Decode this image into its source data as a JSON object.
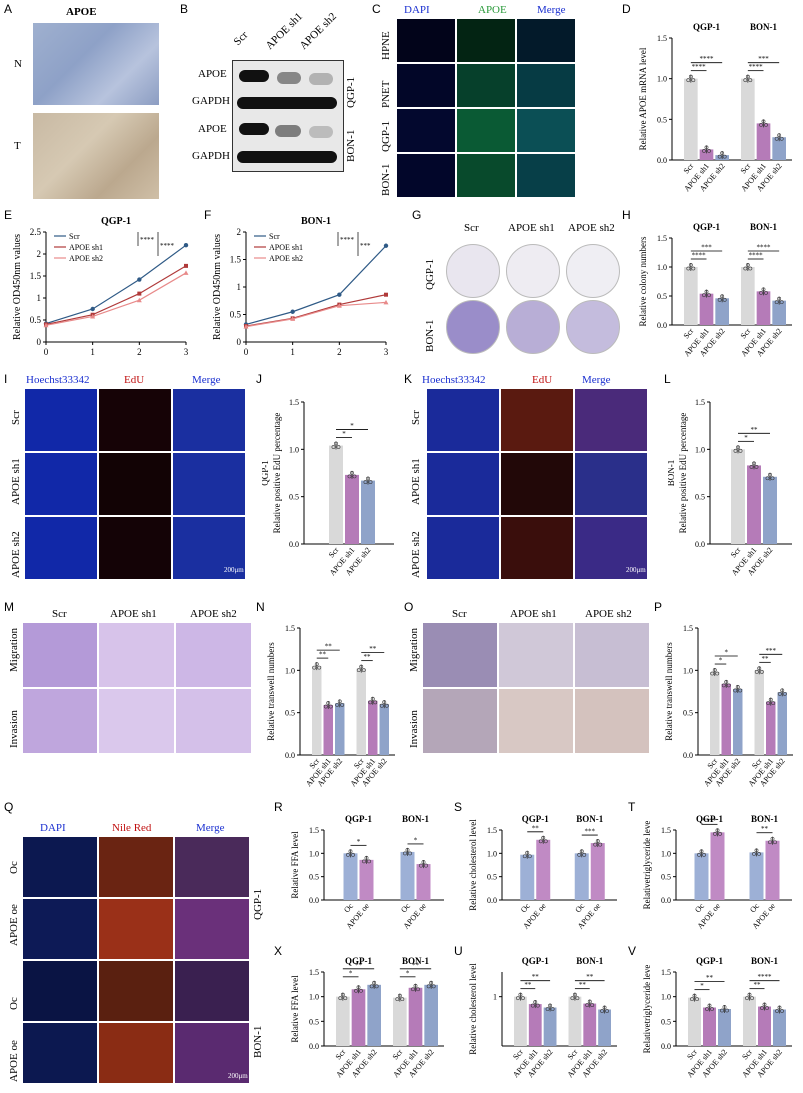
{
  "panels": {
    "A": "A",
    "B": "B",
    "C": "C",
    "D": "D",
    "E": "E",
    "F": "F",
    "G": "G",
    "H": "H",
    "I": "I",
    "J": "J",
    "K": "K",
    "L": "L",
    "M": "M",
    "N": "N",
    "O": "O",
    "P": "P",
    "Q": "Q",
    "R": "R",
    "S": "S",
    "T": "T",
    "U": "U",
    "V": "V",
    "X": "X"
  },
  "A": {
    "title": "APOE",
    "row1": "N",
    "row2": "T"
  },
  "B": {
    "cols": [
      "Scr",
      "APOE sh1",
      "APOE sh2"
    ],
    "rows": [
      "APOE",
      "GAPDH",
      "APOE",
      "GAPDH"
    ],
    "cells": [
      "QGP-1",
      "BON-1"
    ]
  },
  "C": {
    "cols": [
      "DAPI",
      "APOE",
      "Merge"
    ],
    "rows": [
      "HPNE",
      "PNET",
      "QGP-1",
      "BON-1"
    ]
  },
  "G": {
    "cols": [
      "Scr",
      "APOE sh1",
      "APOE sh2"
    ],
    "rows": [
      "QGP-1",
      "BON-1"
    ]
  },
  "I": {
    "cols": [
      "Hoechst33342",
      "EdU",
      "Merge"
    ],
    "rows": [
      "Scr",
      "APOE sh1",
      "APOE sh2"
    ],
    "scale": "200μm"
  },
  "K": {
    "cols": [
      "Hoechst33342",
      "EdU",
      "Merge"
    ],
    "rows": [
      "Scr",
      "APOE sh1",
      "APOE sh2"
    ],
    "scale": "200μm"
  },
  "M": {
    "cols": [
      "Scr",
      "APOE sh1",
      "APOE sh2"
    ],
    "rows": [
      "Migration",
      "Invasion"
    ]
  },
  "O": {
    "cols": [
      "Scr",
      "APOE sh1",
      "APOE sh2"
    ],
    "rows": [
      "Migration",
      "Invasion"
    ]
  },
  "Q": {
    "cols": [
      "DAPI",
      "Nile Red",
      "Merge"
    ],
    "rows": [
      "Oc",
      "APOE oe",
      "Oc",
      "APOE oe"
    ],
    "cells": [
      "QGP-1",
      "BON-1"
    ],
    "scale": "200μm"
  },
  "colors": {
    "scr": "#d9d9d9",
    "sh1": "#b57bb8",
    "sh2": "#8fa3c9",
    "red": "#b03a3a",
    "blue": "#2f5a86",
    "pink": "#e88a8a",
    "oe": "#c08ac4",
    "oc": "#9db0d6"
  },
  "chart_data": [
    {
      "id": "D",
      "type": "bar",
      "ylabel": "Relative APOE mRNA level",
      "groups": [
        "QGP-1",
        "BON-1"
      ],
      "categories": [
        "Scr",
        "APOE sh1",
        "APOE sh2"
      ],
      "values": [
        [
          1.0,
          0.13,
          0.06
        ],
        [
          1.0,
          0.45,
          0.28
        ]
      ],
      "ylim": [
        0,
        1.5
      ],
      "yticks": [
        "0.0",
        "0.5",
        "1.0",
        "1.5"
      ],
      "sig": [
        "****",
        "****",
        "****",
        "***"
      ]
    },
    {
      "id": "E",
      "type": "line",
      "title": "QGP-1",
      "ylabel": "Relative OD450nm values",
      "x": [
        0,
        1,
        2,
        3
      ],
      "ylim": [
        0,
        2.5
      ],
      "yticks": [
        "0",
        "0.5",
        "1",
        "1.5",
        "2",
        "2.5"
      ],
      "series": [
        {
          "name": "Scr",
          "values": [
            0.42,
            0.75,
            1.42,
            2.2
          ]
        },
        {
          "name": "APOE sh1",
          "values": [
            0.4,
            0.62,
            1.1,
            1.73
          ]
        },
        {
          "name": "APOE sh2",
          "values": [
            0.38,
            0.58,
            0.95,
            1.57
          ]
        }
      ],
      "sig": [
        "****",
        "****"
      ]
    },
    {
      "id": "F",
      "type": "line",
      "title": "BON-1",
      "ylabel": "Relative OD450nm values",
      "x": [
        0,
        1,
        2,
        3
      ],
      "ylim": [
        0,
        2
      ],
      "yticks": [
        "0",
        "0.5",
        "1",
        "1.5",
        "2"
      ],
      "series": [
        {
          "name": "Scr",
          "values": [
            0.32,
            0.55,
            0.86,
            1.75
          ]
        },
        {
          "name": "APOE sh1",
          "values": [
            0.29,
            0.43,
            0.68,
            0.86
          ]
        },
        {
          "name": "APOE sh2",
          "values": [
            0.28,
            0.42,
            0.66,
            0.72
          ]
        }
      ],
      "sig": [
        "****",
        "***"
      ]
    },
    {
      "id": "H",
      "type": "bar",
      "ylabel": "Relative colony numbers",
      "groups": [
        "QGP-1",
        "BON-1"
      ],
      "categories": [
        "Scr",
        "APOE sh1",
        "APOE sh2"
      ],
      "values": [
        [
          1.0,
          0.54,
          0.46
        ],
        [
          1.0,
          0.58,
          0.42
        ]
      ],
      "ylim": [
        0,
        1.5
      ],
      "yticks": [
        "0.0",
        "0.5",
        "1.0",
        "1.5"
      ],
      "sig": [
        "****",
        "***",
        "****",
        "****"
      ]
    },
    {
      "id": "J",
      "type": "bar",
      "ylabel": "Relative positive EdU percentage",
      "side": "QGP-1",
      "categories": [
        "Scr",
        "APOE sh1",
        "APOE sh2"
      ],
      "values": [
        1.04,
        0.73,
        0.67
      ],
      "ylim": [
        0,
        1.5
      ],
      "yticks": [
        "0.0",
        "0.5",
        "1.0",
        "1.5"
      ],
      "sig": [
        "*",
        "*"
      ]
    },
    {
      "id": "L",
      "type": "bar",
      "ylabel": "Relative positive EdU percentage",
      "side": "BON-1",
      "categories": [
        "Scr",
        "APOE sh1",
        "APOE sh2"
      ],
      "values": [
        1.0,
        0.83,
        0.71
      ],
      "ylim": [
        0,
        1.5
      ],
      "yticks": [
        "0.0",
        "0.5",
        "1.0",
        "1.5"
      ],
      "sig": [
        "*",
        "**"
      ]
    },
    {
      "id": "N",
      "type": "bar",
      "ylabel": "Relative transwell numbers",
      "groups": [
        "",
        ""
      ],
      "categories": [
        "Scr",
        "APOE sh1",
        "APOE sh2"
      ],
      "values": [
        [
          1.05,
          0.59,
          0.61
        ],
        [
          1.02,
          0.64,
          0.6
        ]
      ],
      "ylim": [
        0,
        1.5
      ],
      "yticks": [
        "0.0",
        "0.5",
        "1.0",
        "1.5"
      ],
      "sig": [
        "**",
        "**",
        "**",
        "**"
      ]
    },
    {
      "id": "P",
      "type": "bar",
      "ylabel": "Relative transwell numbers",
      "groups": [
        "",
        ""
      ],
      "categories": [
        "Scr",
        "APOE sh1",
        "APOE sh2"
      ],
      "values": [
        [
          0.98,
          0.84,
          0.78
        ],
        [
          1.0,
          0.63,
          0.74
        ]
      ],
      "ylim": [
        0,
        1.5
      ],
      "yticks": [
        "0.0",
        "0.5",
        "1.0",
        "1.5"
      ],
      "sig": [
        "*",
        "*",
        "**",
        "***"
      ]
    },
    {
      "id": "R",
      "type": "bar",
      "ylabel": "Relative FFA level",
      "groups": [
        "QGP-1",
        "BON-1"
      ],
      "categories": [
        "Oc",
        "APOE oe"
      ],
      "values": [
        [
          1.0,
          0.86
        ],
        [
          1.03,
          0.77
        ]
      ],
      "ylim": [
        0,
        1.5
      ],
      "yticks": [
        "0.0",
        "0.5",
        "1.0",
        "1.5"
      ],
      "sig": [
        "*",
        "*"
      ]
    },
    {
      "id": "S",
      "type": "bar",
      "ylabel": "Relative cholesterol level",
      "groups": [
        "QGP-1",
        "BON-1"
      ],
      "categories": [
        "Oc",
        "APOE oe"
      ],
      "values": [
        [
          0.97,
          1.29
        ],
        [
          1.0,
          1.22
        ]
      ],
      "ylim": [
        0,
        1.5
      ],
      "yticks": [
        "0.0",
        "0.5",
        "1.0",
        "1.5"
      ],
      "sig": [
        "**",
        "***"
      ]
    },
    {
      "id": "T",
      "type": "bar",
      "ylabel": "Relativetriglyceride leve",
      "groups": [
        "QGP-1",
        "BON-1"
      ],
      "categories": [
        "Oc",
        "APOE oe"
      ],
      "values": [
        [
          1.0,
          1.45
        ],
        [
          1.02,
          1.27
        ]
      ],
      "ylim": [
        0,
        1.5
      ],
      "yticks": [
        "0.0",
        "0.5",
        "1.0",
        "1.5"
      ],
      "sig": [
        "****",
        "**"
      ]
    },
    {
      "id": "X",
      "type": "bar",
      "ylabel": "Relative FFA level",
      "groups": [
        "QGP-1",
        "BON-1"
      ],
      "categories": [
        "Scr",
        "APOE sh1",
        "APOE sh2"
      ],
      "values": [
        [
          1.0,
          1.15,
          1.24
        ],
        [
          0.98,
          1.18,
          1.24
        ]
      ],
      "ylim": [
        0,
        1.5
      ],
      "yticks": [
        "0.0",
        "0.5",
        "1.0",
        "1.5"
      ],
      "sig": [
        "*",
        "**",
        "*",
        "**"
      ]
    },
    {
      "id": "U",
      "type": "bar",
      "ylabel": "Relative cholesterol level",
      "groups": [
        "QGP-1",
        "BON-1"
      ],
      "categories": [
        "Scr",
        "APOE sh1",
        "APOE sh2"
      ],
      "values": [
        [
          1.0,
          0.85,
          0.78
        ],
        [
          1.0,
          0.86,
          0.74
        ]
      ],
      "ylim": [
        0,
        1.5
      ],
      "yticks": [
        "1"
      ],
      "sig": [
        "**",
        "**",
        "**",
        "**"
      ]
    },
    {
      "id": "V",
      "type": "bar",
      "ylabel": "Relativetriglyceride leve",
      "groups": [
        "QGP-1",
        "BON-1"
      ],
      "categories": [
        "Scr",
        "APOE sh1",
        "APOE sh2"
      ],
      "values": [
        [
          0.98,
          0.78,
          0.75
        ],
        [
          1.0,
          0.8,
          0.74
        ]
      ],
      "ylim": [
        0,
        1.5
      ],
      "yticks": [
        "0.0",
        "0.5",
        "1.0",
        "1.5"
      ],
      "sig": [
        "*",
        "**",
        "**",
        "****"
      ]
    }
  ]
}
